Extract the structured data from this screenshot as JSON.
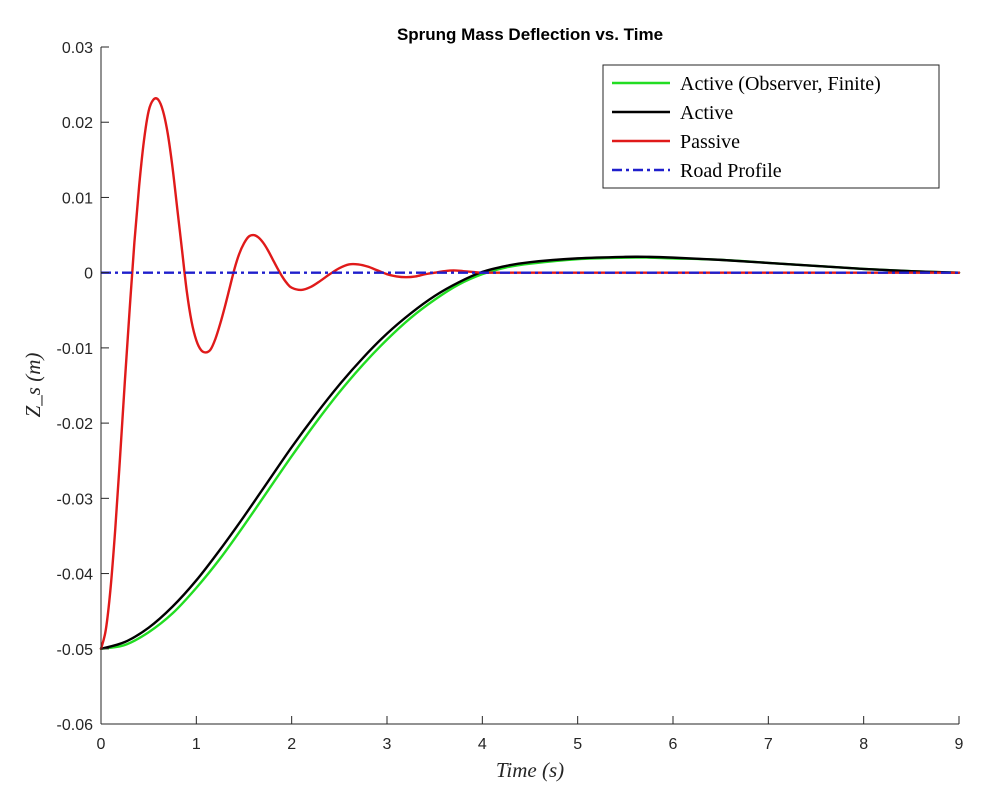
{
  "chart_data": {
    "type": "line",
    "title": "Sprung Mass Deflection vs. Time",
    "xlabel": "Time (s)",
    "ylabel": "Z_s (m)",
    "xlim": [
      0,
      9
    ],
    "ylim": [
      -0.06,
      0.03
    ],
    "x_ticks": [
      0,
      1,
      2,
      3,
      4,
      5,
      6,
      7,
      8,
      9
    ],
    "y_ticks": [
      -0.06,
      -0.05,
      -0.04,
      -0.03,
      -0.02,
      -0.01,
      0,
      0.01,
      0.02,
      0.03
    ],
    "x_tick_labels": [
      "0",
      "1",
      "2",
      "3",
      "4",
      "5",
      "6",
      "7",
      "8",
      "9"
    ],
    "y_tick_labels": [
      "-0.06",
      "-0.05",
      "-0.04",
      "-0.03",
      "-0.02",
      "-0.01",
      "0",
      "0.01",
      "0.02",
      "0.03"
    ],
    "grid": false,
    "legend_position": "top-right",
    "series": [
      {
        "name": "Active (Observer, Finite)",
        "color": "#22dd22",
        "dash": "solid",
        "x": [
          0,
          0.25,
          0.5,
          0.75,
          1,
          1.25,
          1.5,
          1.75,
          2,
          2.25,
          2.5,
          2.75,
          3,
          3.25,
          3.5,
          3.75,
          4,
          4.25,
          4.5,
          5,
          5.5,
          5.75,
          6,
          6.5,
          7,
          7.5,
          8,
          8.5,
          9
        ],
        "y": [
          -0.05,
          -0.0495,
          -0.0478,
          -0.0453,
          -0.0419,
          -0.038,
          -0.0336,
          -0.029,
          -0.0244,
          -0.02,
          -0.0159,
          -0.0122,
          -0.0089,
          -0.006,
          -0.0036,
          -0.0016,
          -0.0002,
          0.0007,
          0.0012,
          0.0018,
          0.002,
          0.002,
          0.0019,
          0.0017,
          0.0013,
          0.0009,
          0.0005,
          0.0002,
          0
        ]
      },
      {
        "name": "Active",
        "color": "#000000",
        "dash": "solid",
        "x": [
          0,
          0.25,
          0.5,
          0.75,
          1,
          1.25,
          1.5,
          1.75,
          2,
          2.25,
          2.5,
          2.75,
          3,
          3.25,
          3.5,
          3.75,
          4,
          4.25,
          4.5,
          5,
          5.5,
          5.75,
          6,
          6.5,
          7,
          7.5,
          8,
          8.5,
          9
        ],
        "y": [
          -0.05,
          -0.0491,
          -0.0472,
          -0.0444,
          -0.0409,
          -0.0368,
          -0.0324,
          -0.0278,
          -0.0232,
          -0.0189,
          -0.0149,
          -0.0113,
          -0.0081,
          -0.0054,
          -0.0031,
          -0.0013,
          0.0001,
          0.0009,
          0.0014,
          0.0019,
          0.0021,
          0.0021,
          0.002,
          0.0017,
          0.0013,
          0.0009,
          0.0005,
          0.0002,
          0
        ]
      },
      {
        "name": "Passive",
        "color": "#e01a1a",
        "dash": "solid",
        "x": [
          0,
          0.05,
          0.1,
          0.15,
          0.2,
          0.25,
          0.3,
          0.35,
          0.4,
          0.45,
          0.5,
          0.55,
          0.6,
          0.65,
          0.7,
          0.75,
          0.8,
          0.85,
          0.9,
          0.95,
          1,
          1.05,
          1.1,
          1.15,
          1.2,
          1.25,
          1.3,
          1.35,
          1.4,
          1.45,
          1.5,
          1.55,
          1.6,
          1.65,
          1.7,
          1.75,
          1.8,
          1.85,
          1.9,
          1.95,
          2,
          2.1,
          2.2,
          2.3,
          2.4,
          2.5,
          2.6,
          2.7,
          2.8,
          2.9,
          3,
          3.1,
          3.2,
          3.3,
          3.4,
          3.5,
          3.6,
          3.7,
          3.8,
          3.9,
          4,
          4.2,
          4.4,
          4.6,
          5,
          6,
          7,
          8,
          9
        ],
        "y": [
          -0.05,
          -0.0475,
          -0.042,
          -0.034,
          -0.0245,
          -0.0145,
          -0.005,
          0.004,
          0.0115,
          0.0175,
          0.0215,
          0.023,
          0.023,
          0.0215,
          0.0185,
          0.014,
          0.0085,
          0.003,
          -0.0025,
          -0.0065,
          -0.009,
          -0.0103,
          -0.0106,
          -0.0102,
          -0.0088,
          -0.0068,
          -0.0045,
          -0.002,
          0.0005,
          0.0025,
          0.0039,
          0.0048,
          0.005,
          0.0047,
          0.004,
          0.003,
          0.0018,
          0.0006,
          -0.0005,
          -0.0014,
          -0.002,
          -0.0023,
          -0.0019,
          -0.0011,
          -0.0002,
          0.0006,
          0.0011,
          0.0011,
          0.0008,
          0.0003,
          -0.0002,
          -0.0005,
          -0.0006,
          -0.0005,
          -0.0002,
          0,
          0.0002,
          0.0003,
          0.0002,
          0.0001,
          0,
          0,
          0,
          0,
          0,
          0,
          0,
          0,
          0
        ]
      },
      {
        "name": "Road Profile",
        "color": "#1f1fcc",
        "dash": "dashdot",
        "x": [
          0,
          9
        ],
        "y": [
          0,
          0
        ]
      }
    ]
  }
}
